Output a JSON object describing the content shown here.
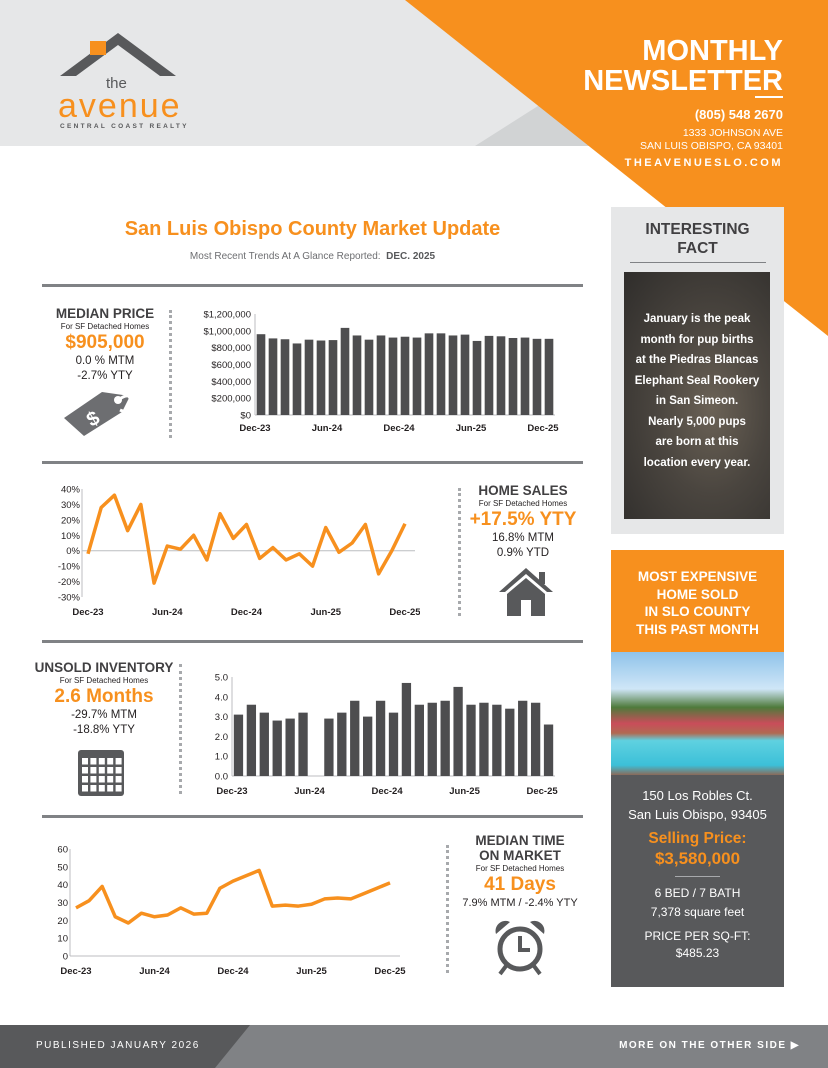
{
  "header": {
    "logo": {
      "the": "the",
      "name": "avenue",
      "tagline": "CENTRAL COAST REALTY"
    },
    "title_line1": "MONTHLY",
    "title_line2": "NEWSLETTER",
    "phone": "(805) 548 2670",
    "address_line1": "1333 JOHNSON AVE",
    "address_line2": "SAN LUIS OBISPO, CA 93401",
    "website": "THEAVENUESLO.COM"
  },
  "colors": {
    "accent": "#f7901e",
    "dark_gray": "#58595b",
    "bar": "#4d4d4f",
    "light_gray": "#e6e7e8"
  },
  "market": {
    "title": "San Luis Obispo County Market Update",
    "subtitle": "Most Recent Trends At A Glance Reported:",
    "report_date": "DEC. 2025"
  },
  "median_price": {
    "heading": "MEDIAN PRICE",
    "sub": "For SF Detached Homes",
    "value": "$905,000",
    "mtm": "0.0 % MTM",
    "yty": "-2.7% YTY",
    "icon": "price-tag-icon"
  },
  "home_sales": {
    "heading": "HOME SALES",
    "sub": "For SF Detached Homes",
    "value": "+17.5% YTY",
    "mtm": "16.8% MTM",
    "ytd": "0.9% YTD",
    "icon": "house-icon"
  },
  "inventory": {
    "heading": "UNSOLD INVENTORY",
    "sub": "For SF Detached Homes",
    "value": "2.6 Months",
    "mtm": "-29.7% MTM",
    "yty": "-18.8% YTY",
    "icon": "calendar-icon"
  },
  "time_on_market": {
    "heading_line1": "MEDIAN TIME",
    "heading_line2": "ON MARKET",
    "sub": "For SF Detached Homes",
    "value": "41 Days",
    "change": "7.9% MTM / -2.4% YTY",
    "icon": "alarm-clock-icon"
  },
  "chart_data": [
    {
      "type": "bar",
      "x_ticks": [
        "Dec-23",
        "Jun-24",
        "Dec-24",
        "Jun-25",
        "Dec-25"
      ],
      "y_ticks": [
        "$1,200,000",
        "$1,000,000",
        "$800,000",
        "$600,000",
        "$400,000",
        "$200,000",
        "$0"
      ],
      "ylim": [
        0,
        1200000
      ],
      "values": [
        960000,
        910000,
        900000,
        850000,
        895000,
        885000,
        890000,
        1035000,
        945000,
        895000,
        945000,
        920000,
        930000,
        920000,
        970000,
        970000,
        945000,
        955000,
        880000,
        940000,
        935000,
        915000,
        920000,
        905000,
        905000
      ]
    },
    {
      "type": "line",
      "x_ticks": [
        "Dec-23",
        "Jun-24",
        "Dec-24",
        "Jun-25",
        "Dec-25"
      ],
      "y_ticks": [
        "40%",
        "30%",
        "20%",
        "10%",
        "0%",
        "-10%",
        "-20%",
        "-30%"
      ],
      "ylim": [
        -30,
        40
      ],
      "values": [
        -2,
        28,
        36,
        13,
        30,
        -21,
        3,
        1,
        10,
        -6,
        24,
        8,
        17,
        -5,
        2,
        -6,
        -2,
        -10,
        15,
        -1,
        5,
        17,
        -15,
        0,
        17.5
      ]
    },
    {
      "type": "bar",
      "x_ticks": [
        "Dec-23",
        "Jun-24",
        "Dec-24",
        "Jun-25",
        "Dec-25"
      ],
      "y_ticks": [
        "5.0",
        "4.0",
        "3.0",
        "2.0",
        "1.0",
        "0.0"
      ],
      "ylim": [
        0,
        5
      ],
      "values": [
        3.1,
        3.6,
        3.2,
        2.8,
        2.9,
        3.2,
        null,
        2.9,
        3.2,
        3.8,
        3.0,
        3.8,
        3.2,
        4.7,
        3.6,
        3.7,
        3.8,
        4.5,
        3.6,
        3.7,
        3.6,
        3.4,
        3.8,
        3.7,
        2.6
      ]
    },
    {
      "type": "line",
      "x_ticks": [
        "Dec-23",
        "Jun-24",
        "Dec-24",
        "Jun-25",
        "Dec-25"
      ],
      "y_ticks": [
        "60",
        "50",
        "40",
        "30",
        "20",
        "10",
        "0"
      ],
      "ylim": [
        0,
        60
      ],
      "values": [
        27,
        31,
        39,
        22,
        18.5,
        24,
        22,
        23,
        27,
        23.5,
        24,
        38,
        42,
        45,
        48,
        28,
        28.5,
        28,
        29,
        32,
        32.5,
        32,
        35,
        38,
        41
      ]
    }
  ],
  "fact": {
    "title_line1": "INTERESTING",
    "title_line2": "FACT",
    "lines": [
      "January is the peak",
      "month for pup births",
      "at the Piedras Blancas",
      "Elephant Seal Rookery",
      "in San Simeon.",
      "Nearly 5,000 pups",
      "are born at this",
      "location every year."
    ]
  },
  "expensive": {
    "title_lines": [
      "MOST EXPENSIVE",
      "HOME SOLD",
      "IN SLO COUNTY",
      "THIS PAST MONTH"
    ],
    "address1": "150 Los Robles Ct.",
    "address2": "San Luis Obispo, 93405",
    "price_label": "Selling Price:",
    "price": "$3,580,000",
    "beds_baths": "6 BED / 7 BATH",
    "sqft": "7,378 square feet",
    "ppsf_label": "PRICE PER SQ-FT:",
    "ppsf": "$485.23"
  },
  "footer": {
    "published": "PUBLISHED JANUARY 2026",
    "more": "MORE ON THE OTHER SIDE",
    "arrow": "▶"
  }
}
